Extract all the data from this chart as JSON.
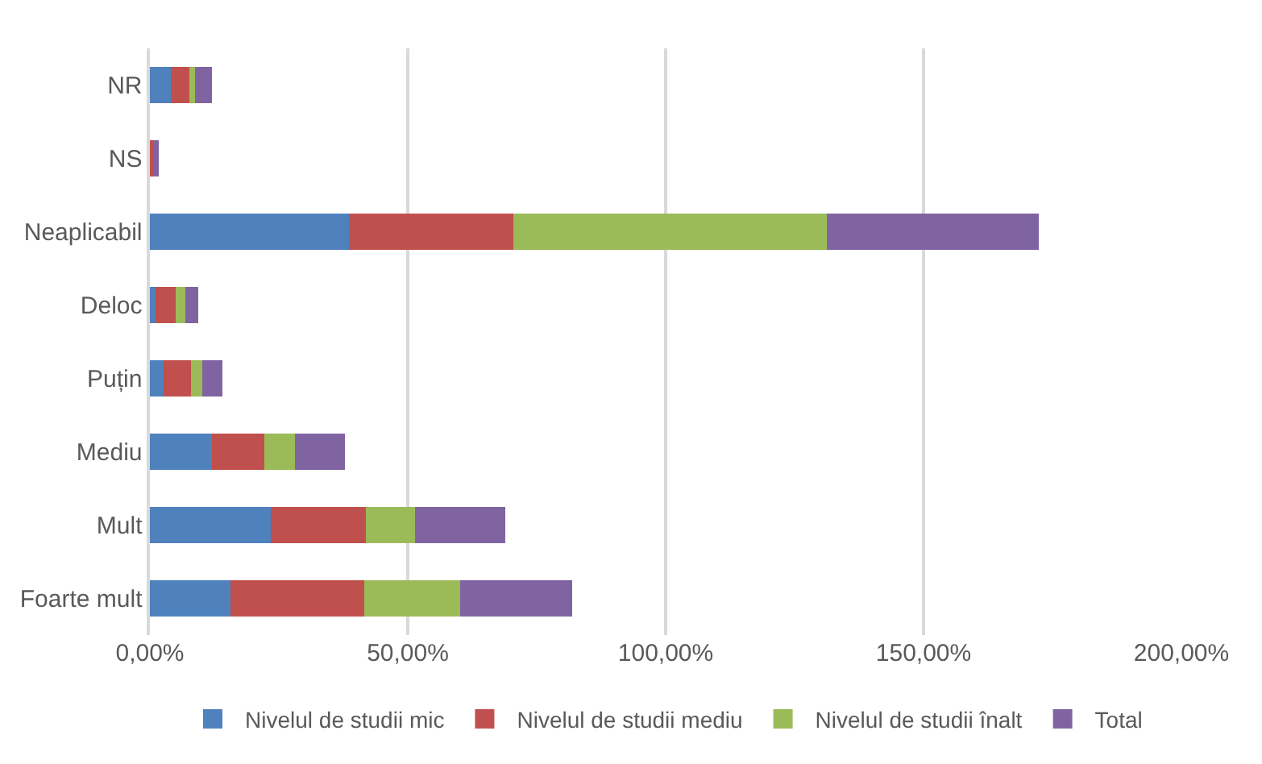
{
  "chart_data": {
    "type": "bar",
    "orientation": "horizontal",
    "stacked": true,
    "categories": [
      "NR",
      "NS",
      "Neaplicabil",
      "Deloc",
      "Puțin",
      "Mediu",
      "Mult",
      "Foarte mult"
    ],
    "series": [
      {
        "name": "Nivelul de studii mic",
        "color": "#4f81bd",
        "values": [
          4.0,
          0.3,
          38.6,
          1.1,
          2.6,
          12.1,
          23.4,
          15.6
        ]
      },
      {
        "name": "Nivelul de studii mediu",
        "color": "#c0504d",
        "values": [
          3.7,
          0.5,
          31.8,
          3.9,
          5.4,
          10.1,
          18.5,
          26.0
        ]
      },
      {
        "name": "Nivelul de studii înalt",
        "color": "#9bbb59",
        "values": [
          1.1,
          null,
          60.8,
          1.8,
          2.1,
          5.9,
          9.5,
          18.5
        ]
      },
      {
        "name": "Total",
        "color": "#8064a2",
        "values": [
          3.2,
          0.9,
          41.1,
          2.6,
          4.0,
          9.7,
          17.5,
          21.8
        ]
      }
    ],
    "xlim": [
      0,
      200
    ],
    "xticks": [
      {
        "value": 0,
        "label": "0,00%"
      },
      {
        "value": 50,
        "label": "50,00%"
      },
      {
        "value": 100,
        "label": "100,00%"
      },
      {
        "value": 150,
        "label": "150,00%"
      },
      {
        "value": 200,
        "label": "200,00%"
      }
    ],
    "grid": "x",
    "legend": "bottom"
  }
}
